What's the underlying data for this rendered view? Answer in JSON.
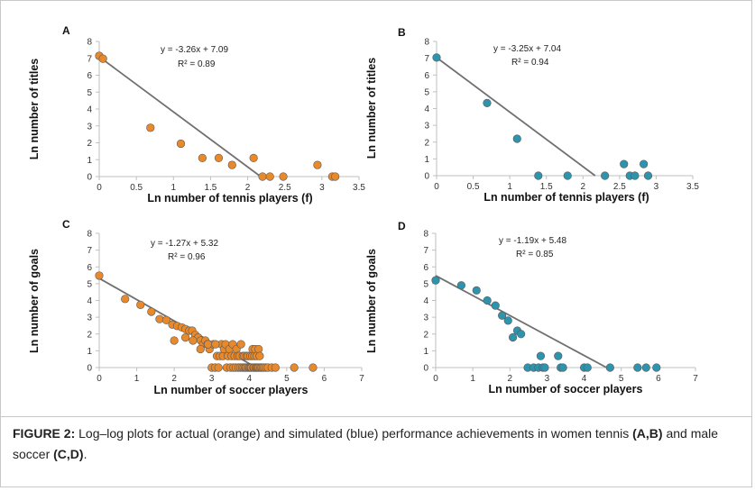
{
  "colors": {
    "simulated": "#2e93ad",
    "actual": "#e8892b",
    "fit_line": "#707070",
    "axis": "#bfbfbf"
  },
  "caption": {
    "lead": "FIGURE 2:",
    "text_1": " Log–log plots for actual (orange) and simulated (blue) performance achievements in women tennis ",
    "ab": "(A,B)",
    "text_2": " and male soccer ",
    "cd": "(C,D)",
    "text_3": "."
  },
  "chart_data": [
    {
      "panel": "A",
      "type": "scatter",
      "marker_color": "#e8892b",
      "xlabel": "Ln number of tennis players (f)",
      "ylabel": "Ln number of titles",
      "xlim": [
        0,
        3.5
      ],
      "ylim": [
        0,
        8
      ],
      "xticks": [
        "0",
        "0.5",
        "1",
        "1.5",
        "2",
        "2.5",
        "3",
        "3.5"
      ],
      "yticks": [
        "0",
        "1",
        "2",
        "3",
        "4",
        "5",
        "6",
        "7",
        "8"
      ],
      "x": [
        0,
        0.05,
        0.69,
        1.1,
        1.39,
        1.61,
        1.79,
        2.08,
        2.2,
        2.3,
        2.48,
        2.94,
        3.14,
        3.18
      ],
      "y": [
        7.15,
        6.98,
        2.89,
        1.95,
        1.1,
        1.1,
        0.69,
        1.1,
        0,
        0,
        0,
        0.69,
        0,
        0
      ],
      "fit": {
        "slope": -3.26,
        "intercept": 7.09
      },
      "equation": "y = -3.26x + 7.09",
      "r2": "R² = 0.89"
    },
    {
      "panel": "B",
      "type": "scatter",
      "marker_color": "#2e93ad",
      "xlabel": "Ln number of tennis players (f)",
      "ylabel": "Ln number of titles",
      "xlim": [
        0,
        3.5
      ],
      "ylim": [
        0,
        8
      ],
      "xticks": [
        "0",
        "0.5",
        "1",
        "1.5",
        "2",
        "2.5",
        "3",
        "3.5"
      ],
      "yticks": [
        "0",
        "1",
        "2",
        "3",
        "4",
        "5",
        "6",
        "7",
        "8"
      ],
      "x": [
        0,
        0.69,
        1.1,
        1.39,
        1.79,
        2.3,
        2.56,
        2.64,
        2.71,
        2.83,
        2.89
      ],
      "y": [
        7.04,
        4.33,
        2.2,
        0,
        0,
        0,
        0.69,
        0,
        0,
        0.69,
        0
      ],
      "fit": {
        "slope": -3.25,
        "intercept": 7.04
      },
      "equation": "y = -3.25x + 7.04",
      "r2": "R² = 0.94"
    },
    {
      "panel": "C",
      "type": "scatter",
      "marker_color": "#e8892b",
      "xlabel": "Ln number of soccer players",
      "ylabel": "Ln number of goals",
      "xlim": [
        0,
        7
      ],
      "ylim": [
        0,
        8
      ],
      "xticks": [
        "0",
        "1",
        "2",
        "3",
        "4",
        "5",
        "6",
        "7"
      ],
      "yticks": [
        "0",
        "1",
        "2",
        "3",
        "4",
        "5",
        "6",
        "7",
        "8"
      ],
      "x": [
        0,
        0.69,
        1.1,
        1.39,
        1.61,
        1.79,
        1.95,
        2.08,
        2.2,
        2.3,
        2.4,
        2.48,
        2.56,
        2.64,
        2.71,
        2.77,
        2.83,
        2.89,
        2.94,
        3.0,
        3.04,
        3.09,
        3.14,
        3.18,
        3.22,
        3.26,
        3.3,
        3.33,
        3.37,
        3.4,
        3.43,
        3.47,
        3.5,
        3.53,
        3.56,
        3.58,
        3.61,
        3.64,
        3.66,
        3.69,
        3.71,
        3.74,
        3.76,
        3.78,
        3.81,
        3.83,
        3.85,
        3.87,
        3.89,
        3.91,
        3.93,
        3.95,
        3.97,
        3.99,
        4.01,
        4.03,
        4.04,
        4.06,
        4.08,
        4.09,
        4.11,
        4.13,
        4.14,
        4.16,
        4.17,
        4.19,
        4.2,
        4.22,
        4.23,
        4.25,
        4.26,
        4.28,
        4.3,
        4.33,
        4.36,
        4.4,
        4.45,
        4.5,
        4.6,
        4.7,
        5.2,
        5.7,
        2.0,
        2.3,
        2.5,
        2.7,
        2.9,
        3.1
      ],
      "y": [
        5.48,
        4.09,
        3.74,
        3.33,
        2.89,
        2.83,
        2.56,
        2.48,
        2.4,
        2.3,
        2.2,
        2.2,
        1.95,
        1.79,
        1.61,
        1.39,
        1.61,
        1.39,
        1.1,
        0,
        1.39,
        0,
        0.69,
        0,
        0.69,
        1.39,
        0.69,
        1.1,
        1.39,
        0,
        0.69,
        1.1,
        0,
        0.69,
        1.39,
        0,
        0.69,
        0,
        1.1,
        0.69,
        0,
        0.69,
        0,
        1.39,
        0,
        0.69,
        0,
        0.69,
        0,
        0,
        0.69,
        0,
        0.69,
        0,
        0,
        0.69,
        0,
        0,
        0.69,
        1.1,
        0,
        0,
        0.69,
        1.1,
        0,
        0,
        0.69,
        0,
        0,
        1.1,
        0,
        0.69,
        0,
        0,
        0,
        0,
        0,
        0,
        0,
        0,
        0,
        0,
        1.61,
        1.79,
        1.61,
        1.1,
        1.39,
        1.39
      ],
      "fit": {
        "slope": -1.27,
        "intercept": 5.32
      },
      "equation": "y = -1.27x + 5.32",
      "r2": "R² = 0.96"
    },
    {
      "panel": "D",
      "type": "scatter",
      "marker_color": "#2e93ad",
      "xlabel": "Ln number of soccer players",
      "ylabel": "Ln number of goals",
      "xlim": [
        0,
        7
      ],
      "ylim": [
        0,
        8
      ],
      "xticks": [
        "0",
        "1",
        "2",
        "3",
        "4",
        "5",
        "6",
        "7"
      ],
      "yticks": [
        "0",
        "1",
        "2",
        "3",
        "4",
        "5",
        "6",
        "7",
        "8"
      ],
      "x": [
        0,
        0.69,
        1.1,
        1.39,
        1.61,
        1.79,
        1.95,
        2.08,
        2.2,
        2.3,
        2.48,
        2.64,
        2.77,
        2.83,
        2.89,
        2.94,
        3.3,
        3.37,
        3.43,
        4.0,
        4.09,
        4.7,
        5.44,
        5.67,
        5.95
      ],
      "y": [
        5.2,
        4.9,
        4.6,
        4.0,
        3.7,
        3.1,
        2.8,
        1.8,
        2.2,
        2.0,
        0,
        0,
        0,
        0.69,
        0,
        0,
        0.69,
        0,
        0,
        0,
        0,
        0,
        0,
        0,
        0
      ],
      "fit": {
        "slope": -1.19,
        "intercept": 5.48
      },
      "equation": "y = -1.19x + 5.48",
      "r2": "R² = 0.85"
    }
  ]
}
